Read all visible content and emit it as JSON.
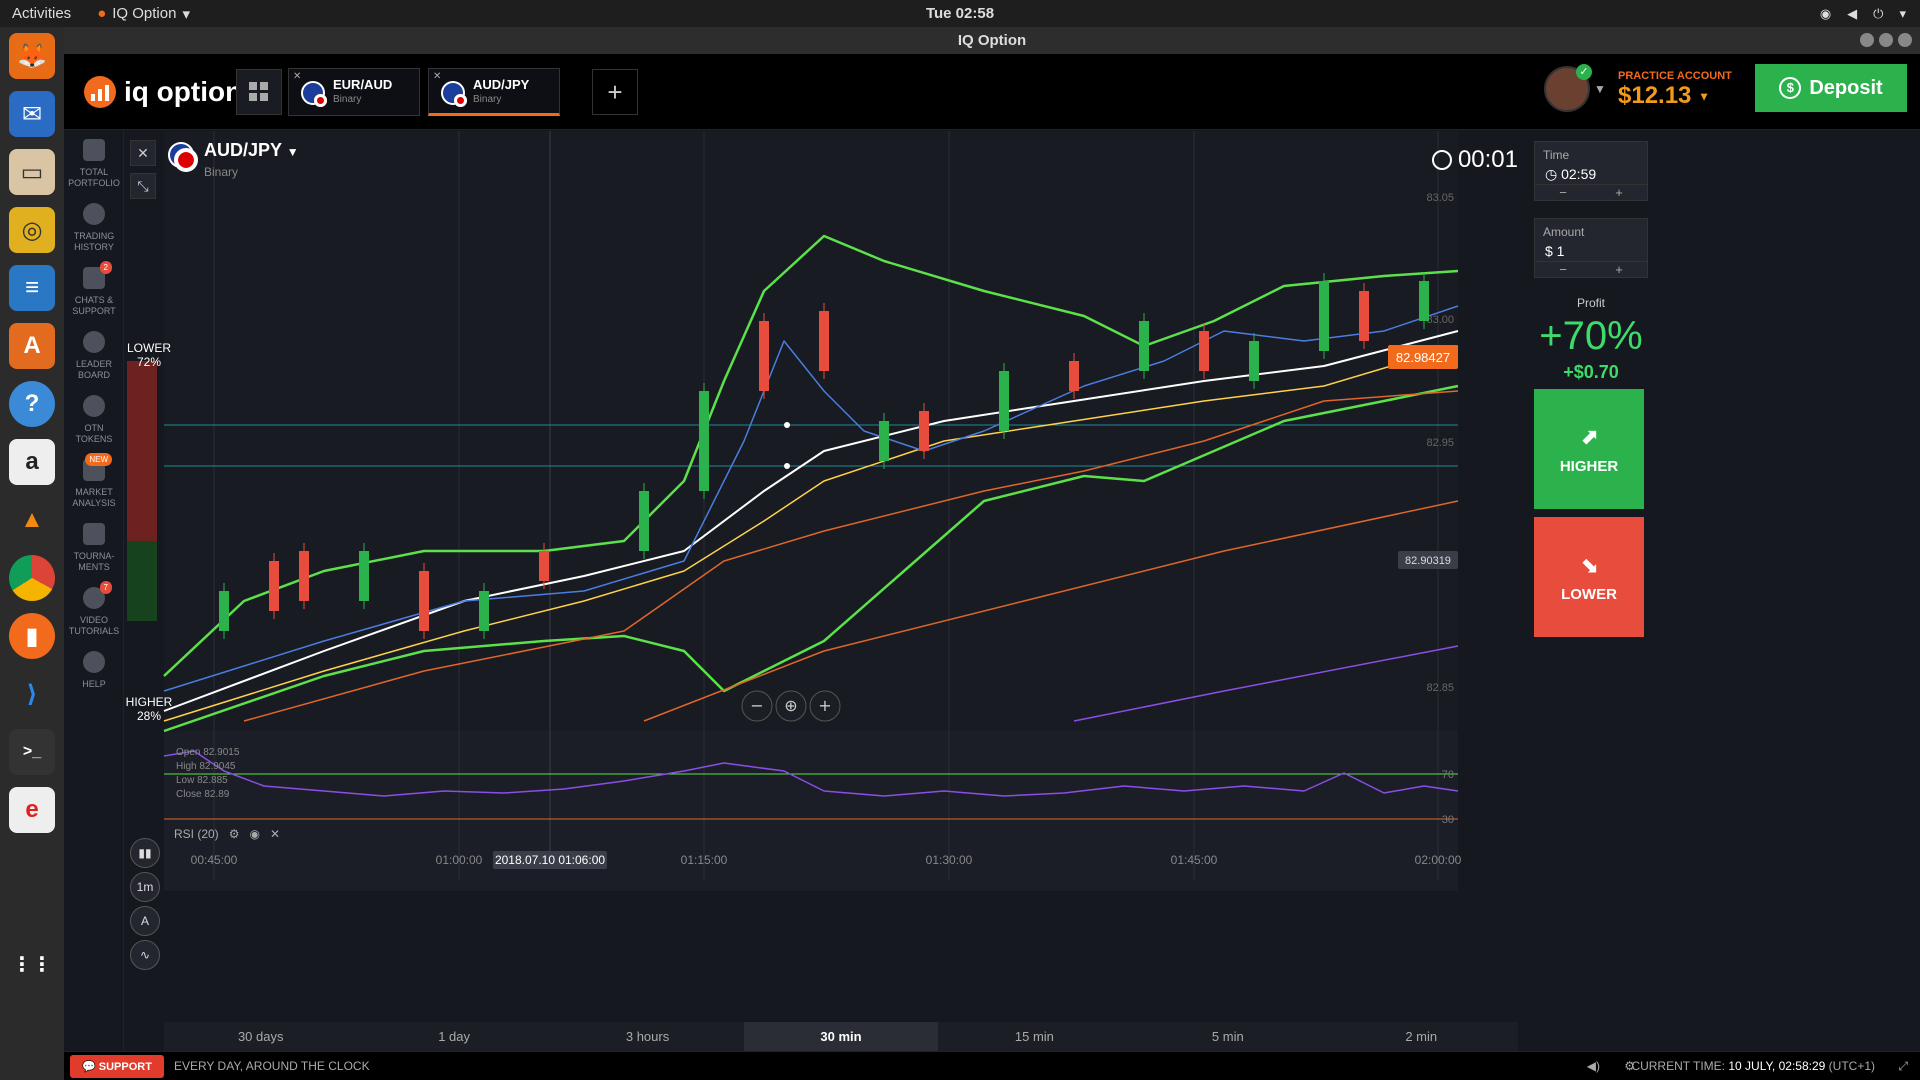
{
  "os": {
    "activities": "Activities",
    "app_name": "IQ Option",
    "clock": "Tue 02:58"
  },
  "window": {
    "title": "IQ Option"
  },
  "header": {
    "logo_text": "iq option",
    "tabs": [
      {
        "pair": "EUR/AUD",
        "type": "Binary"
      },
      {
        "pair": "AUD/JPY",
        "type": "Binary"
      }
    ],
    "account_label": "PRACTICE ACCOUNT",
    "balance": "$12.13",
    "deposit_label": "Deposit"
  },
  "sidebar": {
    "items": [
      {
        "label1": "TOTAL",
        "label2": "PORTFOLIO",
        "badge": ""
      },
      {
        "label1": "TRADING",
        "label2": "HISTORY",
        "badge": ""
      },
      {
        "label1": "CHATS &",
        "label2": "SUPPORT",
        "badge": "2"
      },
      {
        "label1": "LEADER",
        "label2": "BOARD",
        "badge": ""
      },
      {
        "label1": "OTN",
        "label2": "TOKENS",
        "badge": ""
      },
      {
        "label1": "MARKET",
        "label2": "ANALYSIS",
        "badge": "NEW"
      },
      {
        "label1": "TOURNA-",
        "label2": "MENTS",
        "badge": ""
      },
      {
        "label1": "VIDEO",
        "label2": "TUTORIALS",
        "badge": "7"
      },
      {
        "label1": "HELP",
        "label2": "",
        "badge": ""
      }
    ]
  },
  "chart": {
    "pair": "AUD/JPY",
    "type": "Binary",
    "timer": "00:01",
    "lower_label": "LOWER",
    "lower_pct": "72%",
    "higher_label": "HIGHER",
    "higher_pct": "28%",
    "current_price": "82.98427",
    "current_price_prefix": "82.9",
    "current_price_suffix": "8427",
    "marker_price": "82.90319",
    "ohlc": {
      "open": "Open 82.9015",
      "high": "High 82.9045",
      "low": "Low 82.885",
      "close": "Close 82.89"
    },
    "price_ticks": [
      "83.05",
      "83.00",
      "82.95",
      "82.90",
      "82.85"
    ],
    "rsi_label": "RSI (20)",
    "rsi_levels": [
      "70",
      "30"
    ],
    "time_ticks": [
      "00:45:00",
      "01:00:00",
      "01:15:00",
      "01:30:00",
      "01:45:00",
      "02:00:00"
    ],
    "crosshair_time": "2018.07.10 01:06:00",
    "interval_label": "1m",
    "periods": [
      "30 days",
      "1 day",
      "3 hours",
      "30 min",
      "15 min",
      "5 min",
      "2 min"
    ],
    "active_period": "30 min"
  },
  "trade_panel": {
    "time_label": "Time",
    "time_value": "02:59",
    "amount_label": "Amount",
    "amount_value": "$ 1",
    "profit_label": "Profit",
    "profit_pct": "+70%",
    "profit_amount": "+$0.70",
    "higher_label": "HIGHER",
    "lower_label": "LOWER",
    "higher_color": "#2bb24c",
    "lower_color": "#e74c3c"
  },
  "footer": {
    "support_label": "SUPPORT",
    "tagline": "EVERY DAY, AROUND THE CLOCK",
    "current_time_label": "CURRENT TIME:",
    "current_time_value": "10 JULY, 02:58:29",
    "tz": "(UTC+1)"
  }
}
